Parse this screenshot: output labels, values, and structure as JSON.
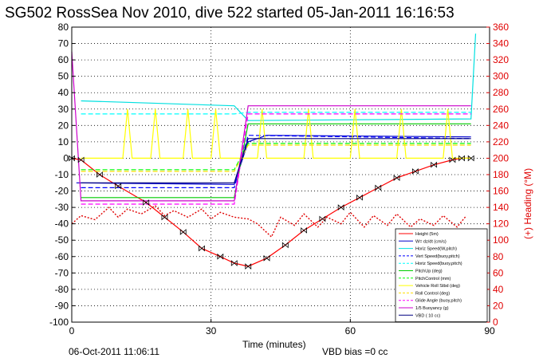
{
  "chart_data": {
    "type": "line",
    "title": "SG502 RossSea Nov 2010, dive 522 started 05-Jan-2011 16:16:53",
    "xlabel": "Time (minutes)",
    "ylabel_right": "(+) Heading (°M)",
    "xlim": [
      0,
      90
    ],
    "ylim": [
      -100,
      80
    ],
    "ylim_right": [
      0,
      360
    ],
    "x_ticks": [
      "0",
      "30",
      "60",
      "90"
    ],
    "y_ticks": [
      "80",
      "70",
      "60",
      "50",
      "40",
      "30",
      "20",
      "10",
      "0",
      "-10",
      "-20",
      "-30",
      "-40",
      "-50",
      "-60",
      "-70",
      "-80",
      "-90",
      "-100"
    ],
    "y_ticks_right": [
      "360",
      "340",
      "320",
      "300",
      "280",
      "260",
      "240",
      "220",
      "200",
      "180",
      "160",
      "140",
      "120",
      "100",
      "80",
      "60",
      "40",
      "20",
      "0"
    ],
    "grid": true,
    "legend_position": "bottom-right",
    "footer_left": "06-Oct-2011 11:06:11",
    "footer_right": "VBD bias =0 cc",
    "colors": {
      "height": "#ff0000",
      "w": "#0000cc",
      "horiz_speed_w": "#00e0e0",
      "vert_speed_buoy": "#0000ff",
      "horiz_speed_buoy": "#00ffff",
      "pitch_up": "#00cc00",
      "pitch_control": "#00ff00",
      "vehicle_roll": "#ffff00",
      "roll_control": "#ffdd00",
      "glide_angle": "#ff00ff",
      "buoyancy": "#cc00cc",
      "vbd": "#000080",
      "heading": "#e00000"
    },
    "series": [
      {
        "name": "Height (5m)",
        "key": "height",
        "x": [
          0,
          2,
          6,
          10,
          16,
          20,
          24,
          28,
          32,
          35,
          38,
          42,
          46,
          50,
          54,
          58,
          62,
          66,
          70,
          74,
          78,
          82,
          84,
          86
        ],
        "values": [
          0,
          -1,
          -10,
          -17,
          -27,
          -36,
          -45,
          -55,
          -60,
          -64,
          -66,
          -61,
          -53,
          -44,
          -37,
          -30,
          -24,
          -18,
          -12,
          -8,
          -4,
          -1,
          0,
          0
        ]
      },
      {
        "name": "W= dz/dt (cm/s)",
        "key": "w",
        "x": [
          1,
          35,
          38,
          42,
          86
        ],
        "values": [
          -15,
          -16,
          10,
          14,
          13
        ]
      },
      {
        "name": "Horiz Speed(W,pitch)",
        "key": "horiz_speed_w",
        "x": [
          2,
          35,
          38,
          86,
          87
        ],
        "values": [
          35,
          32,
          23,
          24,
          76
        ]
      },
      {
        "name": "Vert Speed(buoy,pitch)",
        "key": "vert_speed_buoy",
        "x": [
          2,
          35,
          38,
          86
        ],
        "values": [
          -18,
          -18,
          14,
          12
        ]
      },
      {
        "name": "Horiz Speed(buoy,pitch)",
        "key": "horiz_speed_buoy",
        "x": [
          2,
          35,
          38,
          86
        ],
        "values": [
          27,
          27,
          28,
          28
        ]
      },
      {
        "name": "PitchUp (deg)",
        "key": "pitch_up",
        "x": [
          2,
          35,
          38,
          86
        ],
        "values": [
          -24,
          -24,
          21,
          21
        ]
      },
      {
        "name": "PitchControl (mm)",
        "key": "pitch_control",
        "x": [
          2,
          35,
          38,
          86
        ],
        "values": [
          -7,
          -7,
          9,
          9
        ]
      },
      {
        "name": "Vehicle Roll Stbd (deg)",
        "key": "vehicle_roll",
        "x": [
          2,
          11,
          12,
          13,
          17,
          18,
          19,
          24,
          25,
          26,
          30,
          31,
          32,
          36,
          40,
          41,
          42,
          50,
          51,
          52,
          60,
          61,
          62,
          70,
          71,
          72,
          80,
          81,
          82,
          86
        ],
        "values": [
          0,
          0,
          30,
          0,
          0,
          30,
          0,
          0,
          30,
          0,
          0,
          30,
          0,
          0,
          0,
          30,
          0,
          0,
          30,
          0,
          0,
          30,
          0,
          0,
          30,
          0,
          0,
          30,
          0,
          0
        ]
      },
      {
        "name": "Roll Control (deg)",
        "key": "roll_control",
        "x": [
          2,
          35,
          38,
          86
        ],
        "values": [
          -8,
          -8,
          8,
          8
        ]
      },
      {
        "name": "Glide Angle (buoy,pitch)",
        "key": "glide_angle",
        "x": [
          2,
          35,
          38,
          86
        ],
        "values": [
          -28,
          -28,
          27,
          27
        ]
      },
      {
        "name": "1/5 Buoyancy (g)",
        "key": "buoyancy",
        "x": [
          0,
          2,
          35,
          38,
          86
        ],
        "values": [
          65,
          -26,
          -26,
          32,
          32
        ]
      },
      {
        "name": "VBD ( 10 cc)",
        "key": "vbd",
        "x": [
          2,
          35,
          38,
          86
        ],
        "values": [
          -15,
          -15,
          12,
          12
        ]
      },
      {
        "name": "Heading",
        "key": "heading",
        "axis": "right",
        "x": [
          0,
          2,
          5,
          8,
          10,
          12,
          15,
          18,
          20,
          22,
          25,
          28,
          30,
          32,
          35,
          38,
          40,
          43,
          45,
          48,
          50,
          53,
          55,
          58,
          60,
          63,
          65,
          68,
          70,
          73,
          75,
          78,
          80,
          83,
          85
        ],
        "values": [
          120,
          130,
          125,
          140,
          128,
          138,
          132,
          142,
          130,
          136,
          128,
          138,
          126,
          134,
          128,
          126,
          120,
          104,
          128,
          118,
          132,
          116,
          128,
          120,
          134,
          116,
          130,
          118,
          132,
          116,
          126,
          118,
          130,
          116,
          130
        ]
      }
    ]
  }
}
